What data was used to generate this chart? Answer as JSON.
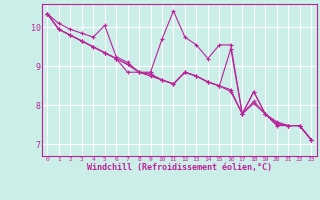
{
  "background_color": "#cceee8",
  "grid_color": "#ffffff",
  "line_color": "#bb2299",
  "marker_color": "#bb2299",
  "xlabel": "Windchill (Refroidissement éolien,°C)",
  "xlabel_fontsize": 6.0,
  "xlim": [
    -0.5,
    23.5
  ],
  "ylim": [
    6.7,
    10.6
  ],
  "yticks": [
    7,
    8,
    9,
    10
  ],
  "xticks": [
    0,
    1,
    2,
    3,
    4,
    5,
    6,
    7,
    8,
    9,
    10,
    11,
    12,
    13,
    14,
    15,
    16,
    17,
    18,
    19,
    20,
    21,
    22,
    23
  ],
  "series": [
    [
      10.35,
      10.1,
      9.95,
      9.85,
      9.75,
      10.05,
      9.25,
      9.1,
      8.85,
      8.85,
      9.7,
      10.42,
      9.75,
      9.55,
      9.2,
      9.55,
      9.55,
      7.78,
      8.35,
      7.78,
      7.48,
      7.48,
      7.48,
      7.12
    ],
    [
      10.35,
      9.95,
      9.8,
      9.65,
      9.5,
      9.35,
      9.2,
      9.05,
      8.85,
      8.75,
      8.65,
      8.55,
      8.85,
      8.75,
      8.6,
      8.5,
      8.4,
      7.78,
      8.1,
      7.78,
      7.58,
      7.48,
      7.48,
      7.12
    ],
    [
      10.35,
      9.95,
      9.8,
      9.65,
      9.5,
      9.35,
      9.2,
      8.85,
      8.85,
      8.8,
      8.65,
      8.55,
      8.85,
      8.75,
      8.6,
      8.5,
      8.35,
      7.78,
      8.05,
      7.78,
      7.53,
      7.48,
      7.48,
      7.12
    ],
    [
      10.35,
      9.95,
      9.8,
      9.65,
      9.5,
      9.35,
      9.2,
      9.05,
      8.85,
      8.8,
      8.65,
      8.55,
      8.85,
      8.75,
      8.6,
      8.5,
      9.45,
      7.78,
      8.35,
      7.78,
      7.53,
      7.48,
      7.48,
      7.12
    ]
  ]
}
